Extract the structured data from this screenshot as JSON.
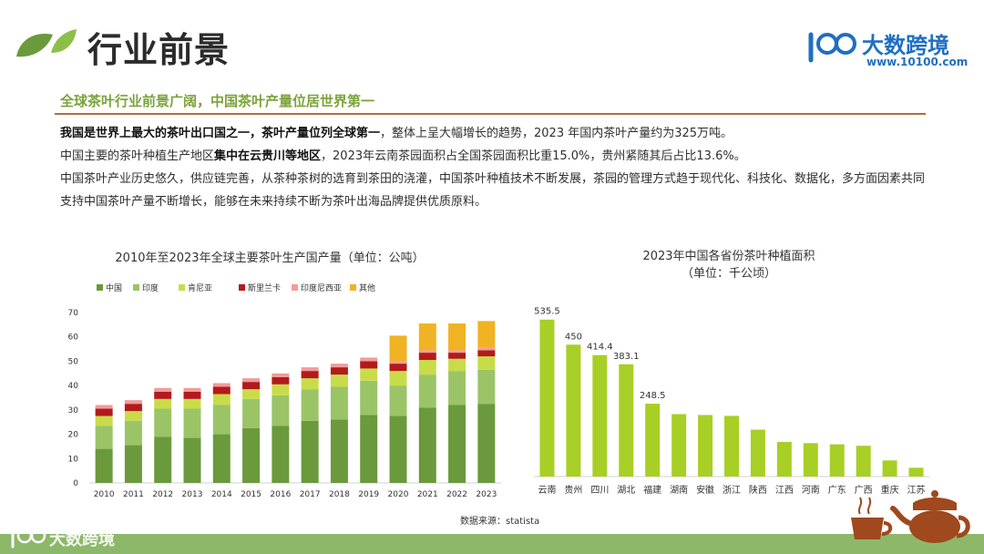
{
  "header": {
    "title": "行业前景",
    "subtitle": "全球茶叶行业前景广阔，中国茶叶产量位居世界第一",
    "logo_name": "大数跨境",
    "logo_url": "www.10100.com"
  },
  "body": {
    "p1_bold": "我国是世界上最大的茶叶出口国之一，茶叶产量位列全球第一",
    "p1_rest": "，整体上呈大幅增长的趋势，2023 年国内茶叶产量约为325万吨。",
    "p2_a": "中国主要的茶叶种植生产地区",
    "p2_bold": "集中在云贵川等地区",
    "p2_rest": "，2023年云南茶园面积占全国茶园面积比重15.0%，贵州紧随其后占比13.6%。",
    "p3": "中国茶叶产业历史悠久，供应链完善，从茶种茶树的选育到茶田的浇灌，中国茶叶种植技术不断发展，茶园的管理方式趋于现代化、科技化、数据化，多方面因素共同支持中国茶叶产量不断增长，能够在未来持续不断为茶叶出海品牌提供优质原料。"
  },
  "footer": {
    "source": "数据来源：statista",
    "logo_name": "大数跨境"
  },
  "chart_data": [
    {
      "type": "bar",
      "stacked": true,
      "title": "2010年至2023年全球主要茶叶生产国产量（单位：公吨）",
      "categories": [
        "2010",
        "2011",
        "2012",
        "2013",
        "2014",
        "2015",
        "2016",
        "2017",
        "2018",
        "2019",
        "2020",
        "2021",
        "2022",
        "2023"
      ],
      "ylim": [
        0,
        70
      ],
      "yticks": [
        0,
        10,
        20,
        30,
        40,
        50,
        60,
        70
      ],
      "legend_position": "top",
      "series": [
        {
          "name": "中国",
          "color": "#6a9a3c",
          "values": [
            14,
            15.5,
            19,
            18.5,
            20,
            22.5,
            23.5,
            25.5,
            26,
            28,
            27.5,
            31,
            32,
            32.5
          ]
        },
        {
          "name": "印度",
          "color": "#9bc467",
          "values": [
            9.5,
            10,
            11.5,
            12,
            12,
            12,
            12.5,
            13,
            13.5,
            14,
            12.5,
            13.5,
            14,
            14
          ]
        },
        {
          "name": "肯尼亚",
          "color": "#c8dc49",
          "values": [
            4,
            4,
            4,
            4,
            4.5,
            4,
            4.5,
            4.5,
            5,
            5,
            6,
            6,
            5,
            5.5
          ]
        },
        {
          "name": "斯里兰卡",
          "color": "#b31b1b",
          "values": [
            3,
            3,
            3,
            3,
            3,
            3,
            3,
            3,
            3,
            3,
            3,
            3,
            2.5,
            2.5
          ]
        },
        {
          "name": "印度尼西亚",
          "color": "#f29b9b",
          "values": [
            1.5,
            1.5,
            1.5,
            1.5,
            1.5,
            1.5,
            1.5,
            1.5,
            1.5,
            1.5,
            1,
            1,
            1,
            1
          ]
        },
        {
          "name": "其他",
          "color": "#f0b323",
          "values": [
            0,
            0,
            0,
            0,
            0,
            0,
            0,
            0,
            0,
            0,
            10.5,
            11,
            11,
            11
          ]
        }
      ]
    },
    {
      "type": "bar",
      "title_line1": "2023年中国各省份茶叶种植面积",
      "title_line2": "（单位：千公顷）",
      "categories": [
        "云南",
        "贵州",
        "四川",
        "湖北",
        "福建",
        "湖南",
        "安徽",
        "浙江",
        "陕西",
        "江西",
        "河南",
        "广东",
        "广西",
        "重庆",
        "江苏"
      ],
      "values": [
        535.5,
        450,
        414.4,
        383.1,
        248.5,
        213,
        210,
        207,
        160,
        118,
        114,
        110,
        105,
        55,
        30
      ],
      "labels": [
        "535.5",
        "450",
        "414.4",
        "383.1",
        "248.5",
        "",
        "",
        "",
        "",
        "",
        "",
        "",
        "",
        "",
        ""
      ],
      "color": "#a8cf25",
      "ylim": [
        0,
        600
      ]
    }
  ]
}
